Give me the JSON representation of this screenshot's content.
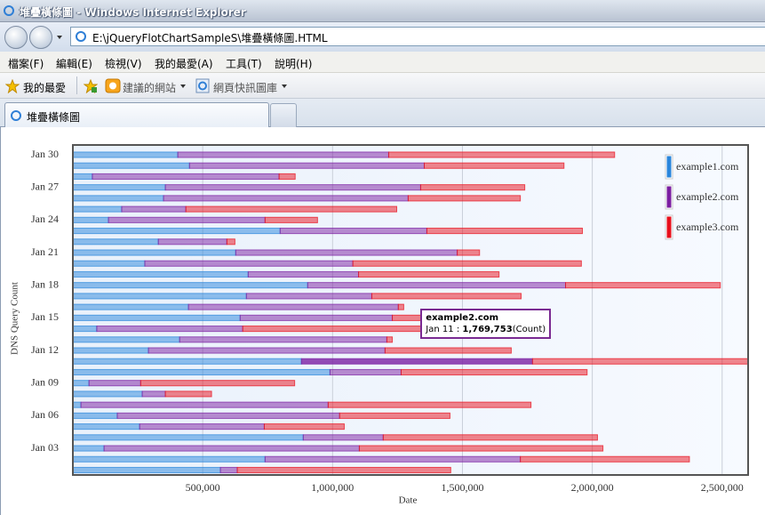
{
  "browser": {
    "window_title": "堆疊橫條圖 - Windows Internet Explorer",
    "address": "E:\\jQueryFlotChartSampleS\\堆疊橫條圖.HTML",
    "menu": [
      "檔案(F)",
      "編輯(E)",
      "檢視(V)",
      "我的最愛(A)",
      "工具(T)",
      "說明(H)"
    ],
    "favorites": "我的最愛",
    "suggested_sites": "建議的網站",
    "web_slice_gallery": "網頁快訊圖庫",
    "tab_title": "堆疊橫條圖"
  },
  "chart_data": {
    "type": "stacked-horizontal-bar",
    "x_label": "Date",
    "y_label": "DNS Query Count",
    "xlim": [
      0,
      2600000
    ],
    "xticks": [
      {
        "value": 500000,
        "label": "500,000"
      },
      {
        "value": 1000000,
        "label": "1,000,000"
      },
      {
        "value": 1500000,
        "label": "1,500,000"
      },
      {
        "value": 2000000,
        "label": "2,000,000"
      },
      {
        "value": 2500000,
        "label": "2,500,000"
      }
    ],
    "grid": true,
    "legend_position": "top-right",
    "categories": [
      null,
      null,
      "Jan 03",
      null,
      null,
      "Jan 06",
      null,
      null,
      "Jan 09",
      null,
      null,
      "Jan 12",
      null,
      null,
      "Jan 15",
      null,
      null,
      "Jan 18",
      null,
      null,
      "Jan 21",
      null,
      null,
      "Jan 24",
      null,
      null,
      "Jan 27",
      null,
      null,
      "Jan 30"
    ],
    "series": [
      {
        "name": "example1.com",
        "color": "#2a86dc",
        "values": [
          568000,
          740000,
          120000,
          887000,
          257000,
          171000,
          31000,
          267000,
          62000,
          990000,
          880000,
          291000,
          411000,
          92000,
          644000,
          445000,
          668000,
          904000,
          675000,
          277000,
          627000,
          329000,
          798000,
          137000,
          188000,
          349000,
          356000,
          75000,
          449000,
          404000
        ]
      },
      {
        "name": "example2.com",
        "color": "#7b1fa2",
        "values": [
          65000,
          983000,
          983000,
          308000,
          480000,
          856000,
          952000,
          89000,
          199000,
          274000,
          889753,
          911000,
          798000,
          562000,
          586000,
          808000,
          483000,
          993000,
          425000,
          801000,
          853000,
          264000,
          565000,
          603000,
          247000,
          942000,
          983000,
          719000,
          904000,
          812000
        ]
      },
      {
        "name": "example3.com",
        "color": "#e8101c",
        "values": [
          822000,
          651000,
          938000,
          825000,
          308000,
          425000,
          781000,
          178000,
          593000,
          716000,
          900000,
          486000,
          21000,
          993000,
          418000,
          21000,
          575000,
          596000,
          541000,
          880000,
          86000,
          31000,
          599000,
          202000,
          812000,
          432000,
          401000,
          62000,
          538000,
          870000
        ]
      }
    ],
    "tooltip": {
      "title": "example2.com",
      "date": "Jan 11",
      "separator": ":",
      "value": 1769753,
      "value_label": "1,769,753",
      "unit": "(Count)"
    }
  }
}
